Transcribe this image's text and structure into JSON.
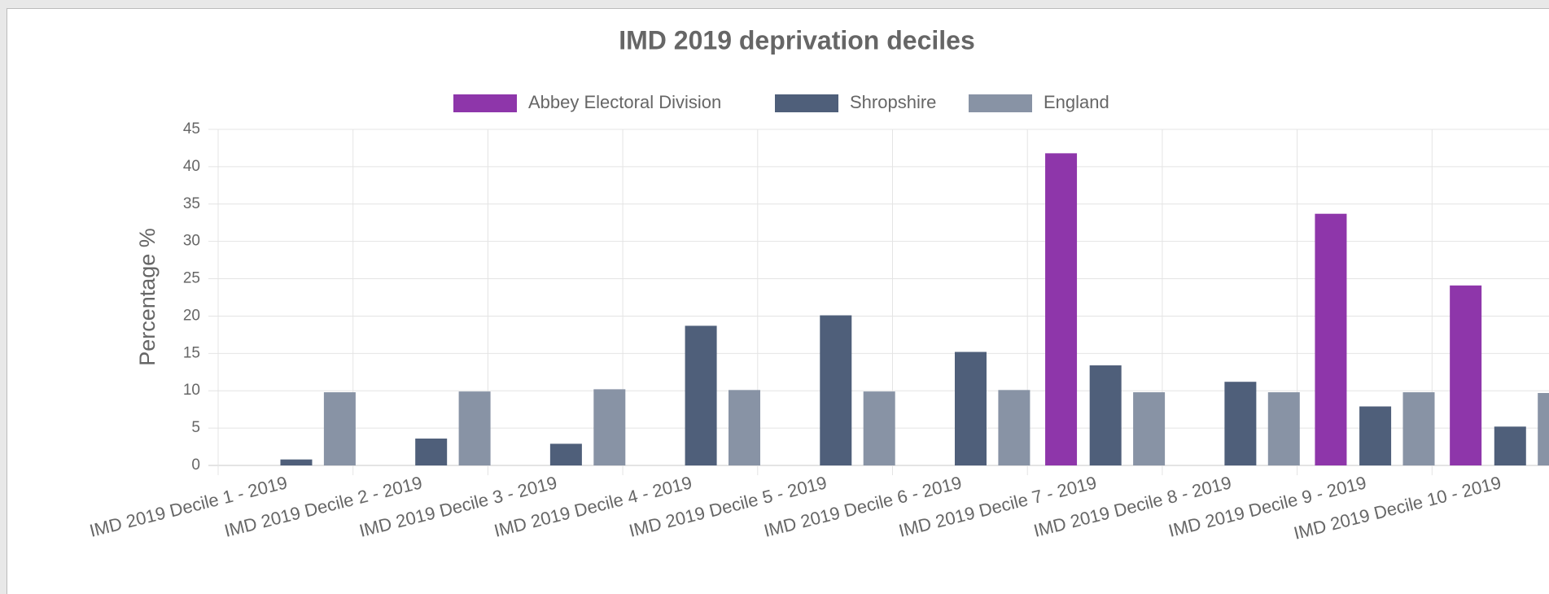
{
  "chart_data": {
    "type": "bar",
    "title": "IMD 2019 deprivation deciles",
    "y_label": "Percentage %",
    "categories": [
      "IMD 2019 Decile 1 - 2019",
      "IMD 2019 Decile 2 - 2019",
      "IMD 2019 Decile 3 - 2019",
      "IMD 2019 Decile 4 - 2019",
      "IMD 2019 Decile 5 - 2019",
      "IMD 2019 Decile 6 - 2019",
      "IMD 2019 Decile 7 - 2019",
      "IMD 2019 Decile 8 - 2019",
      "IMD 2019 Decile 9 - 2019",
      "IMD 2019 Decile 10 - 2019"
    ],
    "series": [
      {
        "name": "Abbey Electoral Division",
        "color": "#8e36aa",
        "values": [
          0,
          0,
          0,
          0,
          0,
          0,
          41.8,
          0,
          33.7,
          24.1
        ]
      },
      {
        "name": "Shropshire",
        "color": "#4f5f7a",
        "values": [
          0.8,
          3.6,
          2.9,
          18.7,
          20.1,
          15.2,
          13.4,
          11.2,
          7.9,
          5.2
        ]
      },
      {
        "name": "England",
        "color": "#8893a5",
        "values": [
          9.8,
          9.9,
          10.2,
          10.1,
          9.9,
          10.1,
          9.8,
          9.8,
          9.8,
          9.7
        ]
      }
    ],
    "ylim": [
      0,
      45
    ],
    "yticks": [
      0,
      5,
      10,
      15,
      20,
      25,
      30,
      35,
      40,
      45
    ],
    "grid": true,
    "legend": "top"
  }
}
